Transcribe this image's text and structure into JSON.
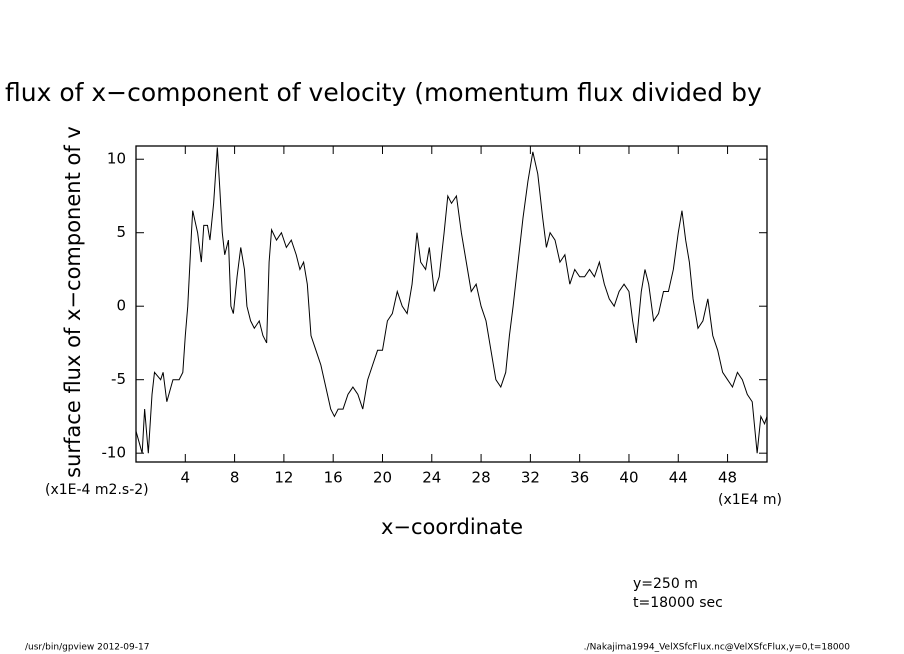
{
  "chart_data": {
    "type": "line",
    "title": "flux of x−component of velocity (momentum flux divided by",
    "ylabel": "surface flux of x−component of v",
    "yunits": "(x1E-4 m2.s-2)",
    "xlabel": "x−coordinate",
    "xunits": "(x1E4 m)",
    "annotations": [
      "y=250 m",
      "t=18000 sec"
    ],
    "footer_left": "/usr/bin/gpview  2012-09-17",
    "footer_right": "./Nakajima1994_VelXSfcFlux.nc@VelXSfcFlux,y=0,t=18000",
    "color": "#000000",
    "xlim": [
      0,
      51.2
    ],
    "ylim": [
      -10.6,
      10.9
    ],
    "xticks": [
      4,
      8,
      12,
      16,
      20,
      24,
      28,
      32,
      36,
      40,
      44,
      48
    ],
    "yticks": [
      10,
      5,
      0,
      -5,
      -10
    ],
    "x": [
      0,
      0.5,
      0.7,
      1.0,
      1.3,
      1.5,
      2,
      2.2,
      2.5,
      3,
      3.5,
      3.8,
      4,
      4.2,
      4.5,
      4.6,
      5,
      5.3,
      5.5,
      5.8,
      6,
      6.3,
      6.6,
      6.8,
      7,
      7.2,
      7.5,
      7.7,
      7.9,
      8.2,
      8.5,
      8.8,
      9.0,
      9.3,
      9.6,
      10,
      10.3,
      10.6,
      10.8,
      11,
      11.4,
      11.8,
      12.2,
      12.6,
      13,
      13.3,
      13.6,
      13.9,
      14.2,
      14.6,
      15,
      15.4,
      15.8,
      16.1,
      16.4,
      16.8,
      17.2,
      17.6,
      18,
      18.4,
      18.8,
      19.2,
      19.6,
      20,
      20.4,
      20.8,
      21.2,
      21.6,
      22,
      22.4,
      22.8,
      23.1,
      23.5,
      23.8,
      24.2,
      24.6,
      25,
      25.3,
      25.6,
      26,
      26.4,
      26.8,
      27.2,
      27.6,
      28,
      28.4,
      28.8,
      29.2,
      29.6,
      30,
      30.3,
      30.6,
      31,
      31.4,
      31.8,
      32.2,
      32.6,
      33,
      33.3,
      33.6,
      34,
      34.4,
      34.8,
      35.2,
      35.6,
      36,
      36.4,
      36.8,
      37.2,
      37.6,
      38,
      38.4,
      38.8,
      39.2,
      39.6,
      40,
      40.3,
      40.6,
      41,
      41.3,
      41.6,
      42,
      42.4,
      42.8,
      43.2,
      43.6,
      44,
      44.3,
      44.6,
      44.9,
      45.2,
      45.6,
      46,
      46.4,
      46.8,
      47.2,
      47.6,
      48,
      48.4,
      48.8,
      49.2,
      49.6,
      50,
      50.4,
      50.7,
      51,
      51.2
    ],
    "values": [
      -8.5,
      -10,
      -7,
      -10,
      -6,
      -4.5,
      -5,
      -4.5,
      -6.5,
      -5,
      -5,
      -4.5,
      -2,
      0,
      5,
      6.5,
      5,
      3,
      5.5,
      5.5,
      4.5,
      7,
      10.8,
      8,
      5,
      3.5,
      4.5,
      0,
      -0.5,
      2,
      4,
      2.5,
      0,
      -1,
      -1.5,
      -1,
      -2,
      -2.5,
      3,
      5.2,
      4.5,
      5,
      4,
      4.5,
      3.5,
      2.5,
      3,
      1.5,
      -2,
      -3,
      -4,
      -5.5,
      -7,
      -7.5,
      -7,
      -7,
      -6,
      -5.5,
      -6,
      -7,
      -5,
      -4,
      -3,
      -3,
      -1,
      -0.5,
      1,
      0,
      -0.5,
      1.5,
      5,
      3,
      2.5,
      4,
      1,
      2,
      5,
      7.5,
      7,
      7.5,
      5,
      3,
      1,
      1.5,
      0,
      -1,
      -3,
      -5,
      -5.5,
      -4.5,
      -2,
      0,
      3,
      6,
      8.5,
      10.5,
      9,
      6,
      4,
      5,
      4.5,
      3,
      3.5,
      1.5,
      2.5,
      2,
      2,
      2.5,
      2,
      3,
      1.5,
      0.5,
      0,
      1,
      1.5,
      1,
      -1,
      -2.5,
      1,
      2.5,
      1.5,
      -1,
      -0.5,
      1,
      1,
      2.5,
      5,
      6.5,
      4.5,
      3,
      0.5,
      -1.5,
      -1,
      0.5,
      -2,
      -3,
      -4.5,
      -5,
      -5.5,
      -4.5,
      -5,
      -6,
      -6.5,
      -10,
      -7.5,
      -8,
      -7.5
    ]
  }
}
